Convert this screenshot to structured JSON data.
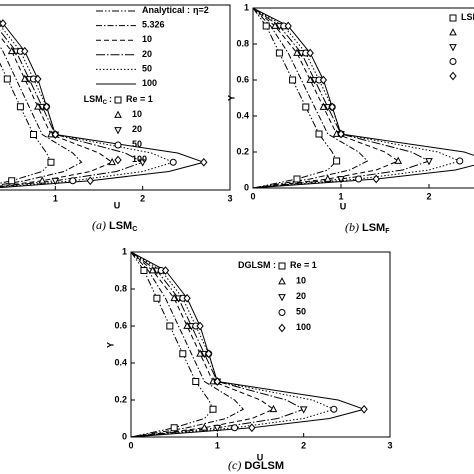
{
  "chart_data": [
    {
      "type": "line",
      "caption": {
        "tag": "(a)",
        "text": "LSM",
        "sub": "C"
      },
      "xlabel": "U",
      "xlim": [
        0,
        3
      ],
      "ylim": [
        0,
        1
      ],
      "xticks": [
        1,
        2,
        3
      ],
      "line_legend_title": "Analytical :",
      "marker_legend_title": "LSM",
      "marker_legend_sub": "C",
      "marker_legend_sep": ":",
      "series": [
        {
          "name": "η=2",
          "kind": "line",
          "dash": "dash-dot-dot",
          "color": "#000000",
          "x": [
            0,
            0.15,
            0.3,
            0.45,
            0.6,
            0.75,
            0.9,
            0.95,
            0.85,
            0.5,
            0
          ],
          "values": [
            1,
            0.9,
            0.75,
            0.6,
            0.45,
            0.3,
            0.2,
            0.15,
            0.1,
            0.05,
            0
          ]
        },
        {
          "name": "5.326",
          "kind": "line",
          "dash": "dash-dot",
          "color": "#000000",
          "x": [
            0,
            0.2,
            0.4,
            0.55,
            0.7,
            0.85,
            1.2,
            1.3,
            1.1,
            0.65,
            0
          ],
          "values": [
            1,
            0.9,
            0.75,
            0.6,
            0.45,
            0.3,
            0.2,
            0.15,
            0.1,
            0.05,
            0
          ]
        },
        {
          "name": "10",
          "kind": "line",
          "dash": "dashed",
          "color": "#000000",
          "x": [
            0,
            0.25,
            0.5,
            0.65,
            0.8,
            0.95,
            1.5,
            1.65,
            1.4,
            0.85,
            0
          ],
          "values": [
            1,
            0.9,
            0.75,
            0.6,
            0.45,
            0.3,
            0.2,
            0.15,
            0.1,
            0.05,
            0
          ]
        },
        {
          "name": "20",
          "kind": "line",
          "dash": "long-dash-dot",
          "color": "#000000",
          "x": [
            0,
            0.3,
            0.55,
            0.7,
            0.85,
            1.0,
            1.8,
            2.0,
            1.7,
            1.0,
            0
          ],
          "values": [
            1,
            0.9,
            0.75,
            0.6,
            0.45,
            0.3,
            0.2,
            0.15,
            0.1,
            0.05,
            0
          ]
        },
        {
          "name": "50",
          "kind": "line",
          "dash": "dotted",
          "color": "#000000",
          "x": [
            0,
            0.35,
            0.6,
            0.75,
            0.9,
            1.0,
            2.1,
            2.35,
            2.0,
            1.2,
            0
          ],
          "values": [
            1,
            0.9,
            0.75,
            0.6,
            0.45,
            0.3,
            0.2,
            0.15,
            0.1,
            0.05,
            0
          ]
        },
        {
          "name": "100",
          "kind": "line",
          "dash": "solid",
          "color": "#000000",
          "x": [
            0,
            0.4,
            0.65,
            0.8,
            0.9,
            1.0,
            2.4,
            2.7,
            2.3,
            1.4,
            0
          ],
          "values": [
            1,
            0.9,
            0.75,
            0.6,
            0.45,
            0.3,
            0.2,
            0.15,
            0.1,
            0.05,
            0
          ]
        },
        {
          "name": "Re = 1",
          "kind": "marker",
          "marker": "square",
          "color": "#000000",
          "x": [
            0.15,
            0.3,
            0.45,
            0.6,
            0.75,
            0.95,
            0.5
          ],
          "values": [
            0.9,
            0.75,
            0.6,
            0.45,
            0.3,
            0.15,
            0.05
          ]
        },
        {
          "name": "10",
          "kind": "marker",
          "marker": "triangle",
          "color": "#000000",
          "x": [
            0.25,
            0.5,
            0.65,
            0.8,
            0.95,
            1.65,
            0.85
          ],
          "values": [
            0.9,
            0.75,
            0.6,
            0.45,
            0.3,
            0.15,
            0.05
          ]
        },
        {
          "name": "20",
          "kind": "marker",
          "marker": "triangle-down",
          "color": "#000000",
          "x": [
            0.3,
            0.55,
            0.7,
            0.85,
            1.0,
            2.0,
            1.0
          ],
          "values": [
            0.9,
            0.75,
            0.6,
            0.45,
            0.3,
            0.15,
            0.05
          ]
        },
        {
          "name": "50",
          "kind": "marker",
          "marker": "circle",
          "color": "#000000",
          "x": [
            0.35,
            0.6,
            0.75,
            0.9,
            1.0,
            2.35,
            1.2
          ],
          "values": [
            0.9,
            0.75,
            0.6,
            0.45,
            0.3,
            0.15,
            0.05
          ]
        },
        {
          "name": "100",
          "kind": "marker",
          "marker": "diamond",
          "color": "#000000",
          "x": [
            0.4,
            0.65,
            0.8,
            0.9,
            1.0,
            2.7,
            1.4
          ],
          "values": [
            0.9,
            0.75,
            0.6,
            0.45,
            0.3,
            0.15,
            0.05
          ]
        }
      ]
    },
    {
      "type": "line",
      "caption": {
        "tag": "(b)",
        "text": "LSM",
        "sub": "F"
      },
      "xlabel": "U",
      "ylabel": "Y",
      "xlim": [
        0,
        3
      ],
      "ylim": [
        0,
        1
      ],
      "xticks": [
        0,
        1,
        2
      ],
      "yticks": [
        0,
        0.2,
        0.4,
        0.6,
        0.8,
        1
      ],
      "marker_legend_title": "LSM",
      "series": [
        {
          "kind": "line",
          "dash": "dash-dot-dot",
          "color": "#000000",
          "x": [
            0,
            0.15,
            0.3,
            0.45,
            0.6,
            0.75,
            0.9,
            0.95,
            0.85,
            0.5,
            0
          ],
          "values": [
            1,
            0.9,
            0.75,
            0.6,
            0.45,
            0.3,
            0.2,
            0.15,
            0.1,
            0.05,
            0
          ]
        },
        {
          "kind": "line",
          "dash": "dash-dot",
          "color": "#000000",
          "x": [
            0,
            0.2,
            0.4,
            0.55,
            0.7,
            0.85,
            1.2,
            1.3,
            1.1,
            0.65,
            0
          ],
          "values": [
            1,
            0.9,
            0.75,
            0.6,
            0.45,
            0.3,
            0.2,
            0.15,
            0.1,
            0.05,
            0
          ]
        },
        {
          "kind": "line",
          "dash": "dashed",
          "color": "#000000",
          "x": [
            0,
            0.25,
            0.5,
            0.65,
            0.8,
            0.95,
            1.5,
            1.65,
            1.4,
            0.85,
            0
          ],
          "values": [
            1,
            0.9,
            0.75,
            0.6,
            0.45,
            0.3,
            0.2,
            0.15,
            0.1,
            0.05,
            0
          ]
        },
        {
          "kind": "line",
          "dash": "long-dash-dot",
          "color": "#000000",
          "x": [
            0,
            0.3,
            0.55,
            0.7,
            0.85,
            1.0,
            1.8,
            2.0,
            1.7,
            1.0,
            0
          ],
          "values": [
            1,
            0.9,
            0.75,
            0.6,
            0.45,
            0.3,
            0.2,
            0.15,
            0.1,
            0.05,
            0
          ]
        },
        {
          "kind": "line",
          "dash": "dotted",
          "color": "#000000",
          "x": [
            0,
            0.35,
            0.6,
            0.75,
            0.9,
            1.0,
            2.1,
            2.35,
            2.0,
            1.2,
            0
          ],
          "values": [
            1,
            0.9,
            0.75,
            0.6,
            0.45,
            0.3,
            0.2,
            0.15,
            0.1,
            0.05,
            0
          ]
        },
        {
          "kind": "line",
          "dash": "solid",
          "color": "#000000",
          "x": [
            0,
            0.4,
            0.65,
            0.8,
            0.9,
            1.0,
            2.4,
            2.7,
            2.3,
            1.4,
            0
          ],
          "values": [
            1,
            0.9,
            0.75,
            0.6,
            0.45,
            0.3,
            0.2,
            0.15,
            0.1,
            0.05,
            0
          ]
        },
        {
          "kind": "marker",
          "marker": "square",
          "color": "#000000",
          "x": [
            0.15,
            0.3,
            0.45,
            0.6,
            0.75,
            0.95,
            0.5
          ],
          "values": [
            0.9,
            0.75,
            0.6,
            0.45,
            0.3,
            0.15,
            0.05
          ]
        },
        {
          "kind": "marker",
          "marker": "triangle",
          "color": "#000000",
          "x": [
            0.25,
            0.5,
            0.65,
            0.8,
            0.95,
            1.65,
            0.85
          ],
          "values": [
            0.9,
            0.75,
            0.6,
            0.45,
            0.3,
            0.15,
            0.05
          ]
        },
        {
          "kind": "marker",
          "marker": "triangle-down",
          "color": "#000000",
          "x": [
            0.3,
            0.55,
            0.7,
            0.85,
            1.0,
            2.0,
            1.0
          ],
          "values": [
            0.9,
            0.75,
            0.6,
            0.45,
            0.3,
            0.15,
            0.05
          ]
        },
        {
          "kind": "marker",
          "marker": "circle",
          "color": "#000000",
          "x": [
            0.35,
            0.6,
            0.75,
            0.9,
            1.0,
            2.35,
            1.2
          ],
          "values": [
            0.9,
            0.75,
            0.6,
            0.45,
            0.3,
            0.15,
            0.05
          ]
        },
        {
          "kind": "marker",
          "marker": "diamond",
          "color": "#000000",
          "x": [
            0.4,
            0.65,
            0.8,
            0.9,
            1.0,
            2.7,
            1.4
          ],
          "values": [
            0.9,
            0.75,
            0.6,
            0.45,
            0.3,
            0.15,
            0.05
          ]
        }
      ]
    },
    {
      "type": "line",
      "caption": {
        "tag": "(c)",
        "text": "DGLSM"
      },
      "xlabel": "U",
      "ylabel": "Y",
      "xlim": [
        0,
        3
      ],
      "ylim": [
        0,
        1
      ],
      "xticks": [
        0,
        1,
        2,
        3
      ],
      "yticks": [
        0,
        0.2,
        0.4,
        0.6,
        0.8,
        1
      ],
      "marker_legend_title": "DGLSM :",
      "series": [
        {
          "kind": "line",
          "dash": "dash-dot-dot",
          "color": "#000000",
          "x": [
            0,
            0.15,
            0.3,
            0.45,
            0.6,
            0.75,
            0.9,
            0.95,
            0.85,
            0.5,
            0
          ],
          "values": [
            1,
            0.9,
            0.75,
            0.6,
            0.45,
            0.3,
            0.2,
            0.15,
            0.1,
            0.05,
            0
          ]
        },
        {
          "kind": "line",
          "dash": "dash-dot",
          "color": "#000000",
          "x": [
            0,
            0.2,
            0.4,
            0.55,
            0.7,
            0.85,
            1.2,
            1.3,
            1.1,
            0.65,
            0
          ],
          "values": [
            1,
            0.9,
            0.75,
            0.6,
            0.45,
            0.3,
            0.2,
            0.15,
            0.1,
            0.05,
            0
          ]
        },
        {
          "kind": "line",
          "dash": "dashed",
          "color": "#000000",
          "x": [
            0,
            0.25,
            0.5,
            0.65,
            0.8,
            0.95,
            1.5,
            1.65,
            1.4,
            0.85,
            0
          ],
          "values": [
            1,
            0.9,
            0.75,
            0.6,
            0.45,
            0.3,
            0.2,
            0.15,
            0.1,
            0.05,
            0
          ]
        },
        {
          "kind": "line",
          "dash": "long-dash-dot",
          "color": "#000000",
          "x": [
            0,
            0.3,
            0.55,
            0.7,
            0.85,
            1.0,
            1.8,
            2.0,
            1.7,
            1.0,
            0
          ],
          "values": [
            1,
            0.9,
            0.75,
            0.6,
            0.45,
            0.3,
            0.2,
            0.15,
            0.1,
            0.05,
            0
          ]
        },
        {
          "kind": "line",
          "dash": "dotted",
          "color": "#000000",
          "x": [
            0,
            0.35,
            0.6,
            0.75,
            0.9,
            1.0,
            2.1,
            2.35,
            2.0,
            1.2,
            0
          ],
          "values": [
            1,
            0.9,
            0.75,
            0.6,
            0.45,
            0.3,
            0.2,
            0.15,
            0.1,
            0.05,
            0
          ]
        },
        {
          "kind": "line",
          "dash": "solid",
          "color": "#000000",
          "x": [
            0,
            0.4,
            0.65,
            0.8,
            0.9,
            1.0,
            2.4,
            2.7,
            2.3,
            1.4,
            0
          ],
          "values": [
            1,
            0.9,
            0.75,
            0.6,
            0.45,
            0.3,
            0.2,
            0.15,
            0.1,
            0.05,
            0
          ]
        },
        {
          "name": "Re = 1",
          "kind": "marker",
          "marker": "square",
          "color": "#000000",
          "x": [
            0.15,
            0.3,
            0.45,
            0.6,
            0.75,
            0.95,
            0.5
          ],
          "values": [
            0.9,
            0.75,
            0.6,
            0.45,
            0.3,
            0.15,
            0.05
          ]
        },
        {
          "name": "10",
          "kind": "marker",
          "marker": "triangle",
          "color": "#000000",
          "x": [
            0.25,
            0.5,
            0.65,
            0.8,
            0.95,
            1.65,
            0.85
          ],
          "values": [
            0.9,
            0.75,
            0.6,
            0.45,
            0.3,
            0.15,
            0.05
          ]
        },
        {
          "name": "20",
          "kind": "marker",
          "marker": "triangle-down",
          "color": "#000000",
          "x": [
            0.3,
            0.55,
            0.7,
            0.85,
            1.0,
            2.0,
            1.0
          ],
          "values": [
            0.9,
            0.75,
            0.6,
            0.45,
            0.3,
            0.15,
            0.05
          ]
        },
        {
          "name": "50",
          "kind": "marker",
          "marker": "circle",
          "color": "#000000",
          "x": [
            0.35,
            0.6,
            0.75,
            0.9,
            1.0,
            2.35,
            1.2
          ],
          "values": [
            0.9,
            0.75,
            0.6,
            0.45,
            0.3,
            0.15,
            0.05
          ]
        },
        {
          "name": "100",
          "kind": "marker",
          "marker": "diamond",
          "color": "#000000",
          "x": [
            0.4,
            0.65,
            0.8,
            0.9,
            1.0,
            2.7,
            1.4
          ],
          "values": [
            0.9,
            0.75,
            0.6,
            0.45,
            0.3,
            0.15,
            0.05
          ]
        }
      ]
    }
  ]
}
